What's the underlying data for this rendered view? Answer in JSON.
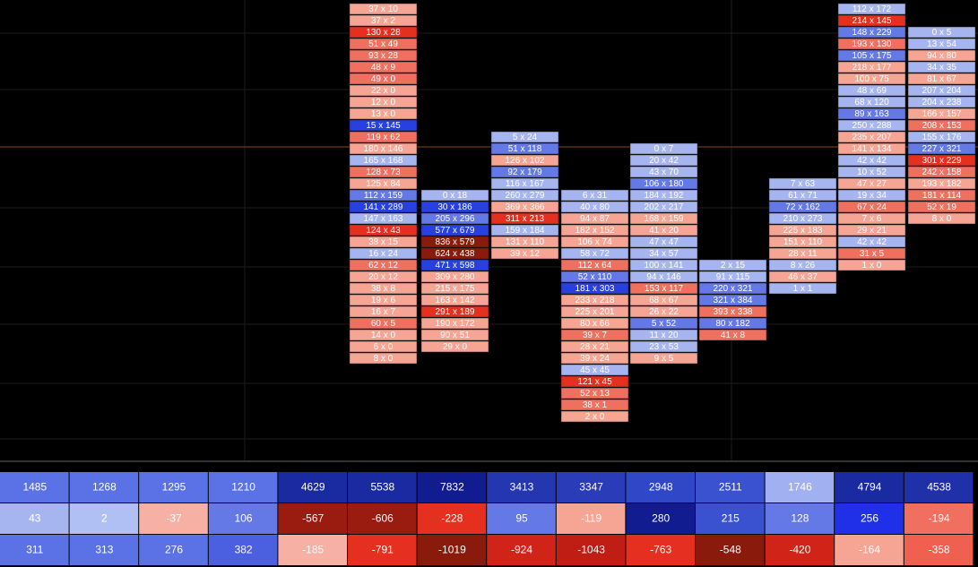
{
  "footprint": {
    "columns": [
      {
        "cells": [
          "37 x 10",
          "37 x 2",
          "130 x 28",
          "51 x 49",
          "93 x 28",
          "48 x 9",
          "49 x 0",
          "22 x 0",
          "12 x 0",
          "13 x 0",
          "15 x 145",
          "119 x 62",
          "180 x 146",
          "165 x 168",
          "128 x 73",
          "125 x 84",
          "112 x 159",
          "141 x 289",
          "147 x 163",
          "124 x 43",
          "38 x 15",
          "16 x 24",
          "62 x 12",
          "20 x 12",
          "38 x 8",
          "19 x 6",
          "16 x 7",
          "60 x 5",
          "14 x 0",
          "6 x 0",
          "8 x 0"
        ],
        "colors": [
          "#f6a595",
          "#f6a595",
          "#e53020",
          "#f07060",
          "#f07060",
          "#f07060",
          "#f07060",
          "#f6a595",
          "#f6a595",
          "#f6a595",
          "#2840e0",
          "#f07060",
          "#f6a595",
          "#a6b4f0",
          "#f07060",
          "#f6a595",
          "#6478e6",
          "#2840e0",
          "#a6b4f0",
          "#e53020",
          "#f6a595",
          "#a6b4f0",
          "#f07060",
          "#f6a595",
          "#f6a595",
          "#f6a595",
          "#f6a595",
          "#f07060",
          "#f6a595",
          "#f6a595",
          "#f6a595"
        ]
      },
      {
        "cells": [
          "0 x 18",
          "30 x 186",
          "205 x 296",
          "577 x 679",
          "836 x 579",
          "624 x 438",
          "471 x 598",
          "309 x 280",
          "215 x 175",
          "163 x 142",
          "291 x 189",
          "190 x 172",
          "90 x 51",
          "29 x 0"
        ],
        "colors": [
          "#a6b4f0",
          "#2840e0",
          "#6478e6",
          "#2840e0",
          "#8a1a0c",
          "#8a1a0c",
          "#2840e0",
          "#f6a595",
          "#f6a595",
          "#f6a595",
          "#e53020",
          "#f6a595",
          "#f6a595",
          "#f6a595"
        ]
      },
      {
        "cells": [
          "5 x 24",
          "51 x 118",
          "126 x 102",
          "92 x 179",
          "116 x 167",
          "260 x 279",
          "369 x 366",
          "311 x 213",
          "159 x 184",
          "131 x 110",
          "39 x 12"
        ],
        "colors": [
          "#a6b4f0",
          "#6478e6",
          "#f6a595",
          "#6478e6",
          "#a6b4f0",
          "#a6b4f0",
          "#f6a595",
          "#e53020",
          "#a6b4f0",
          "#f6a595",
          "#f6a595"
        ]
      },
      {
        "cells": [
          "6 x 31",
          "40 x 80",
          "94 x 87",
          "182 x 152",
          "106 x 74",
          "58 x 72",
          "112 x 64",
          "52 x 110",
          "181 x 303",
          "233 x 218",
          "225 x 201",
          "80 x 66",
          "39 x 7",
          "28 x 21",
          "39 x 24",
          "45 x 45",
          "121 x 45",
          "52 x 13",
          "38 x 1",
          "2 x 0"
        ],
        "colors": [
          "#a6b4f0",
          "#a6b4f0",
          "#f6a595",
          "#f6a595",
          "#f6a595",
          "#a6b4f0",
          "#f07060",
          "#6478e6",
          "#2840e0",
          "#f6a595",
          "#f6a595",
          "#f6a595",
          "#f07060",
          "#f6a595",
          "#f6a595",
          "#a6b4f0",
          "#e53020",
          "#f07060",
          "#f07060",
          "#f6a595"
        ]
      },
      {
        "cells": [
          "0 x 7",
          "20 x 42",
          "43 x 70",
          "106 x 180",
          "184 x 192",
          "202 x 217",
          "168 x 159",
          "41 x 20",
          "47 x 47",
          "34 x 57",
          "100 x 141",
          "94 x 146",
          "153 x 117",
          "68 x 67",
          "26 x 22",
          "5 x 52",
          "11 x 20",
          "23 x 53",
          "9 x 5"
        ],
        "colors": [
          "#a6b4f0",
          "#a6b4f0",
          "#a6b4f0",
          "#6478e6",
          "#a6b4f0",
          "#a6b4f0",
          "#f6a595",
          "#f6a595",
          "#a6b4f0",
          "#a6b4f0",
          "#a6b4f0",
          "#a6b4f0",
          "#f07060",
          "#f6a595",
          "#f6a595",
          "#6478e6",
          "#a6b4f0",
          "#a6b4f0",
          "#f6a595"
        ]
      },
      {
        "cells": [
          "2 x 15",
          "91 x 115",
          "220 x 321",
          "321 x 384",
          "393 x 338",
          "80 x 182",
          "41 x 8"
        ],
        "colors": [
          "#a6b4f0",
          "#a6b4f0",
          "#6478e6",
          "#6478e6",
          "#f07060",
          "#6478e6",
          "#f07060"
        ]
      },
      {
        "cells": [
          "7 x 63",
          "61 x 71",
          "72 x 162",
          "210 x 273",
          "225 x 183",
          "151 x 110",
          "28 x 11",
          "8 x 26",
          "46 x 37",
          "1 x 1"
        ],
        "colors": [
          "#a6b4f0",
          "#a6b4f0",
          "#6478e6",
          "#a6b4f0",
          "#f6a595",
          "#f6a595",
          "#f6a595",
          "#a6b4f0",
          "#f6a595",
          "#a6b4f0"
        ]
      },
      {
        "cells": [
          "112 x 172",
          "214 x 145",
          "148 x 229",
          "193 x 130",
          "105 x 175",
          "218 x 177",
          "100 x 75",
          "48 x 69",
          "68 x 120",
          "89 x 163",
          "250 x 288",
          "235 x 207",
          "141 x 134",
          "42 x 42",
          "10 x 52",
          "47 x 27",
          "19 x 34",
          "67 x 24",
          "7 x 6",
          "29 x 21",
          "42 x 42",
          "31 x 5",
          "1 x 0"
        ],
        "colors": [
          "#a6b4f0",
          "#e53020",
          "#6478e6",
          "#f07060",
          "#6478e6",
          "#f6a595",
          "#f6a595",
          "#a6b4f0",
          "#a6b4f0",
          "#6478e6",
          "#a6b4f0",
          "#f6a595",
          "#f6a595",
          "#a6b4f0",
          "#a6b4f0",
          "#f6a595",
          "#a6b4f0",
          "#f07060",
          "#f6a595",
          "#f6a595",
          "#a6b4f0",
          "#f07060",
          "#f6a595"
        ]
      },
      {
        "cells": [
          "0 x 5",
          "13 x 54",
          "94 x 80",
          "34 x 35",
          "81 x 67",
          "207 x 204",
          "204 x 238",
          "166 x 157",
          "208 x 153",
          "155 x 176",
          "227 x 321",
          "301 x 229",
          "242 x 158",
          "193 x 182",
          "181 x 114",
          "52 x 19",
          "8 x 0"
        ],
        "colors": [
          "#a6b4f0",
          "#a6b4f0",
          "#f6a595",
          "#a6b4f0",
          "#f6a595",
          "#a6b4f0",
          "#a6b4f0",
          "#f6a595",
          "#f07060",
          "#a6b4f0",
          "#6478e6",
          "#e53020",
          "#f07060",
          "#f6a595",
          "#f07060",
          "#f07060",
          "#f6a595"
        ]
      }
    ]
  },
  "summary": {
    "rows": [
      {
        "values": [
          1485,
          1268,
          1295,
          1210,
          4629,
          5538,
          7832,
          3413,
          3347,
          2948,
          2511,
          1746,
          4794,
          4538
        ],
        "colors": [
          "#5a72e6",
          "#5a72e6",
          "#5a72e6",
          "#5a72e6",
          "#1a2aa0",
          "#1a2aa0",
          "#101c90",
          "#2436b0",
          "#2a3cb8",
          "#3048c8",
          "#3a52d0",
          "#a0b0f0",
          "#1a2aa0",
          "#2030a8"
        ]
      },
      {
        "values": [
          43,
          2,
          -37,
          106,
          -567,
          -606,
          -228,
          95,
          -119,
          280,
          215,
          128,
          256,
          -194
        ],
        "colors": [
          "#a6b4f0",
          "#b0c0f4",
          "#f6b0a4",
          "#6478e6",
          "#9a1c10",
          "#9a1c10",
          "#e53020",
          "#6478e6",
          "#f6a595",
          "#101c90",
          "#3a52d0",
          "#6478e6",
          "#2030e8",
          "#f07060"
        ]
      },
      {
        "values": [
          311,
          313,
          276,
          382,
          -185,
          -791,
          -1019,
          -924,
          -1043,
          -763,
          -548,
          -420,
          -164,
          -358
        ],
        "colors": [
          "#5a72e6",
          "#5a72e6",
          "#5a72e6",
          "#4a60e0",
          "#f6b0a4",
          "#e53020",
          "#8a1a0c",
          "#d02418",
          "#c01e14",
          "#e53020",
          "#8a1a0c",
          "#d02418",
          "#f6a595",
          "#f06050"
        ]
      }
    ]
  }
}
